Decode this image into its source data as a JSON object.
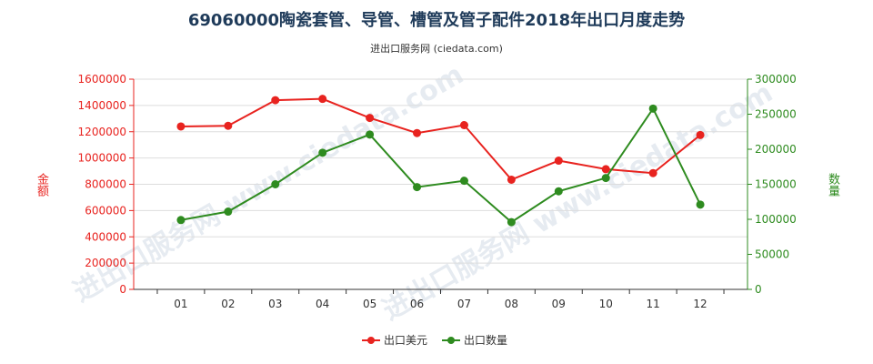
{
  "chart_data": {
    "type": "line",
    "title": "69060000陶瓷套管、导管、槽管及管子配件2018年出口月度走势",
    "subtitle": "进出口服务网 (ciedata.com)",
    "categories": [
      "01",
      "02",
      "03",
      "04",
      "05",
      "06",
      "07",
      "08",
      "09",
      "10",
      "11",
      "12"
    ],
    "ylabel_left": "金额",
    "ylabel_right": "数量",
    "ylim_left": [
      0,
      1600000
    ],
    "ylim_right": [
      0,
      300000
    ],
    "yticks_left": [
      "0",
      "200000",
      "400000",
      "600000",
      "800000",
      "1000000",
      "1200000",
      "1400000",
      "1600000"
    ],
    "yticks_right": [
      "0",
      "50000",
      "100000",
      "150000",
      "200000",
      "250000",
      "300000"
    ],
    "legend_position": "bottom",
    "series": [
      {
        "name": "出口美元",
        "axis": "left",
        "color": "#e8231f",
        "values": [
          1240000,
          1245000,
          1440000,
          1450000,
          1305000,
          1190000,
          1250000,
          835000,
          980000,
          915000,
          885000,
          1175000
        ]
      },
      {
        "name": "出口数量",
        "axis": "right",
        "color": "#2e8b1f",
        "values": [
          99000,
          111000,
          150000,
          195000,
          221000,
          146000,
          155000,
          96000,
          140000,
          159000,
          258000,
          121000
        ]
      }
    ]
  },
  "watermark": "进出口服务网 www.ciedata.com"
}
